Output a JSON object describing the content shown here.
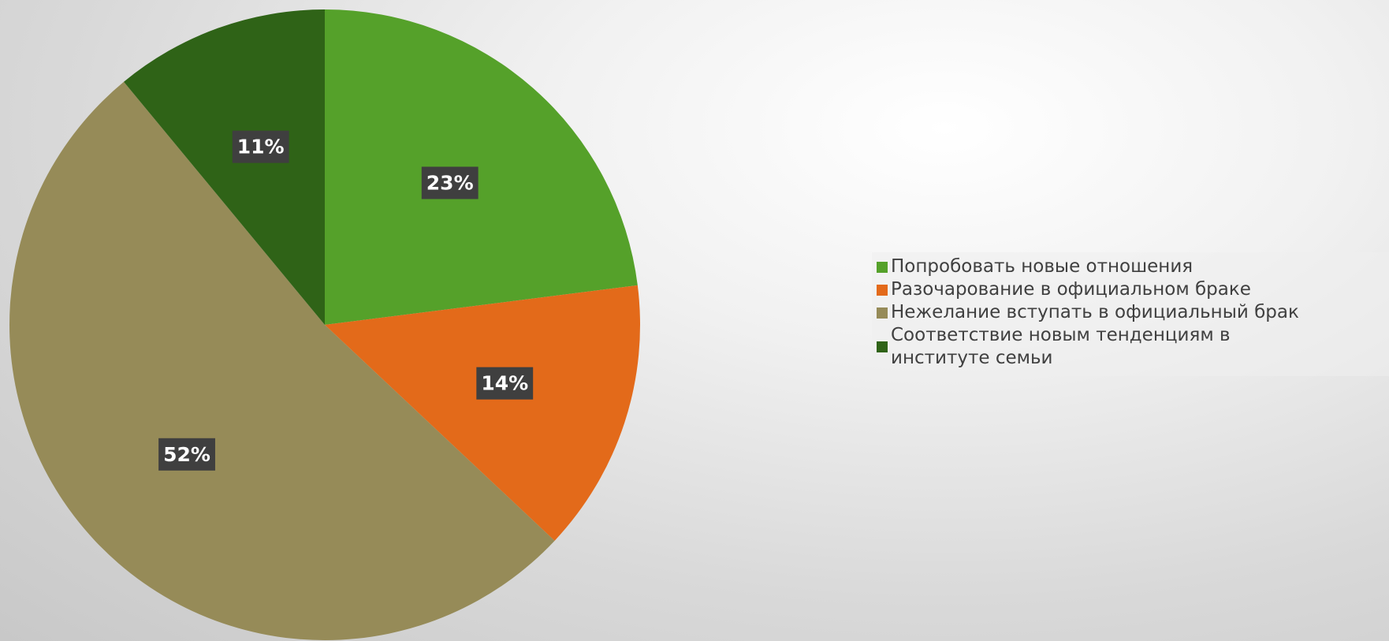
{
  "chart_data": {
    "type": "pie",
    "title": "",
    "legend_position": "right",
    "slices": [
      {
        "label": "Попробовать новые отношения",
        "value": 23,
        "display": "23%",
        "color": "#55a12a"
      },
      {
        "label": "Разочарование в официальном браке",
        "value": 14,
        "display": "14%",
        "color": "#e36a1a"
      },
      {
        "label": "Нежелание вступать в официальный брак",
        "value": 52,
        "display": "52%",
        "color": "#968b58"
      },
      {
        "label": "Соответствие новым тенденциям в институте семьи",
        "value": 11,
        "display": "11%",
        "color": "#2f6317"
      }
    ]
  }
}
